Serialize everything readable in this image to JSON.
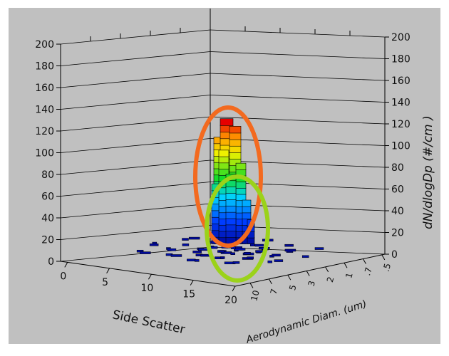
{
  "chart_data": {
    "type": "bar3d",
    "x_axis": {
      "label": "Side Scatter",
      "ticks": [
        "0",
        "5",
        "10",
        "15",
        "20"
      ]
    },
    "y_axis": {
      "label": "Aerodynamic Diam. (um)",
      "ticks": [
        ".5",
        ".7",
        "1",
        "2",
        "3",
        "5",
        "7",
        "10"
      ]
    },
    "z_axis": {
      "label": "dN/dlogDp  (#/cm )",
      "ticks": [
        "0",
        "20",
        "40",
        "60",
        "80",
        "100",
        "120",
        "140",
        "160",
        "180",
        "200"
      ],
      "range": [
        0,
        200
      ]
    },
    "peak_value": 115,
    "grid": true,
    "colormap": "rainbow (blue=low, red=high)",
    "annotations": [
      {
        "shape": "ellipse",
        "color": "#f36a1f",
        "meaning": "upper cluster of tall bars"
      },
      {
        "shape": "ellipse",
        "color": "#9bd21a",
        "meaning": "lower cluster of bars"
      }
    ],
    "colors": {
      "background": "#c0c0c0",
      "orange_ring": "#f36a1f",
      "green_ring": "#9bd21a"
    }
  }
}
